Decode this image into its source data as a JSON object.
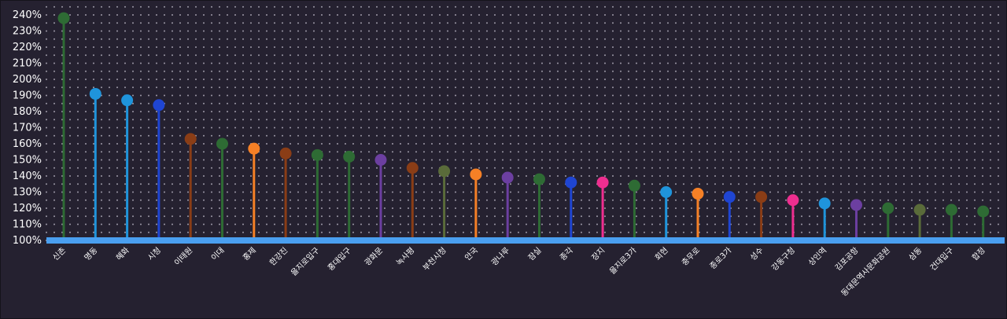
{
  "chart_data": {
    "type": "lollipop",
    "baseline": 100,
    "ylim": [
      100,
      240
    ],
    "ytick_step": 10,
    "ytick_suffix": "%",
    "grid": "dotted",
    "baseline_color": "#4a9ff0",
    "categories": [
      "신촌",
      "명동",
      "혜화",
      "시청",
      "이태원",
      "이대",
      "홍제",
      "한강진",
      "을지로입구",
      "홍대입구",
      "광화문",
      "녹사평",
      "부천시청",
      "안국",
      "광나루",
      "잠실",
      "종각",
      "장지",
      "을지로3가",
      "회현",
      "충무로",
      "종로3가",
      "성수",
      "강동구청",
      "상인역",
      "김포공항",
      "동대문역사문화공원",
      "삼동",
      "건대입구",
      "합정"
    ],
    "values": [
      238,
      191,
      187,
      184,
      163,
      160,
      157,
      154,
      153,
      152,
      150,
      145,
      143,
      141,
      139,
      138,
      136,
      136,
      134,
      130,
      129,
      127,
      127,
      125,
      123,
      122,
      120,
      119,
      119,
      118
    ],
    "colors": [
      "#2e6b34",
      "#1f94db",
      "#1f94db",
      "#1f45d2",
      "#8a3d16",
      "#2e6b34",
      "#f58026",
      "#8a3d16",
      "#2e6b34",
      "#2e6b34",
      "#6c3fa0",
      "#8a3d16",
      "#5a6b3a",
      "#f58026",
      "#6c3fa0",
      "#2e6b34",
      "#1f45d2",
      "#ee2e8f",
      "#2e6b34",
      "#1f94db",
      "#f58026",
      "#1f45d2",
      "#8a3d16",
      "#ee2e8f",
      "#1f94db",
      "#6c3fa0",
      "#2e6b34",
      "#5a6b3a",
      "#2e6b34",
      "#2e6b34"
    ]
  }
}
